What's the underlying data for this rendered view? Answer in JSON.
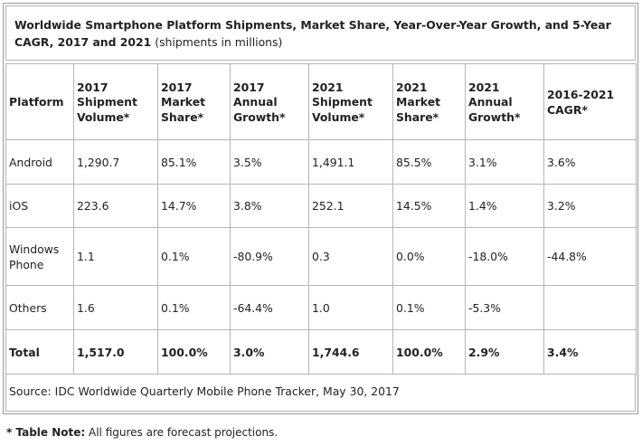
{
  "title": {
    "bold": "Worldwide Smartphone Platform Shipments, Market Share, Year-Over-Year Growth, and 5-Year CAGR, 2017 and 2021",
    "normal": "(shipments in millions)"
  },
  "table": {
    "headers": [
      "Platform",
      "2017 Shipment Volume*",
      "2017 Market Share*",
      "2017 Annual Growth*",
      "2021 Shipment Volume*",
      "2021 Market Share*",
      "2021 Annual Growth*",
      "2016-2021 CAGR*"
    ],
    "rows": [
      [
        "Android",
        "1,290.7",
        "85.1%",
        "3.5%",
        "1,491.1",
        "85.5%",
        "3.1%",
        "3.6%"
      ],
      [
        "iOS",
        "223.6",
        "14.7%",
        "3.8%",
        "252.1",
        "14.5%",
        "1.4%",
        "3.2%"
      ],
      [
        "Windows Phone",
        "1.1",
        "0.1%",
        "-80.9%",
        "0.3",
        "0.0%",
        "-18.0%",
        "-44.8%"
      ],
      [
        "Others",
        "1.6",
        "0.1%",
        "-64.4%",
        "1.0",
        "0.1%",
        "-5.3%",
        ""
      ],
      [
        "Total",
        "1,517.0",
        "100.0%",
        "3.0%",
        "1,744.6",
        "100.0%",
        "2.9%",
        "3.4%"
      ]
    ]
  },
  "source": "Source: IDC Worldwide Quarterly Mobile Phone Tracker, May 30, 2017",
  "note": {
    "label": "* Table Note:",
    "text": "All figures are forecast projections."
  }
}
